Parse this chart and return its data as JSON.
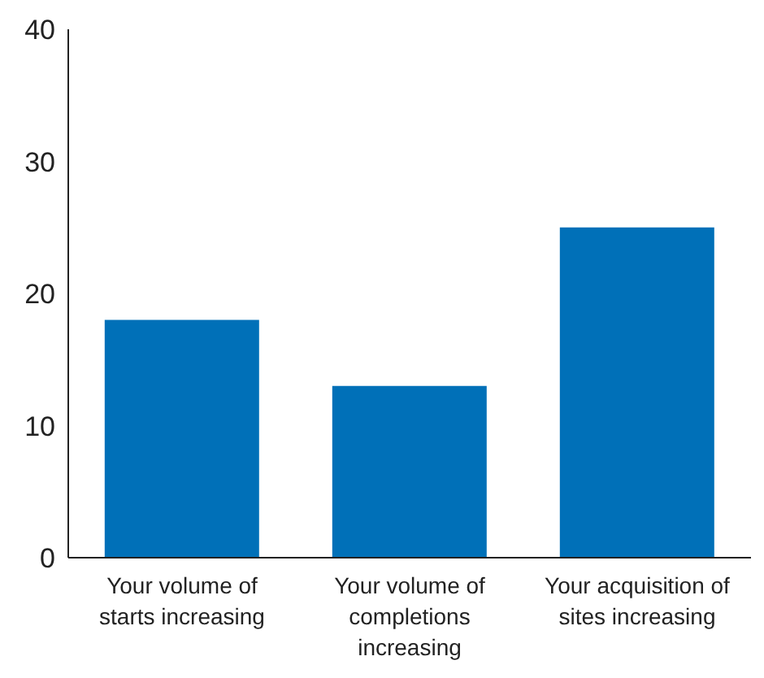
{
  "chart_data": {
    "type": "bar",
    "categories": [
      "Your volume of starts increasing",
      "Your volume of completions increasing",
      "Your acquisition of sites increasing"
    ],
    "values": [
      18,
      13,
      25
    ],
    "color": "#0070b8",
    "ylim": [
      0,
      40
    ],
    "yticks": [
      0,
      10,
      20,
      30,
      40
    ],
    "grid": false
  }
}
